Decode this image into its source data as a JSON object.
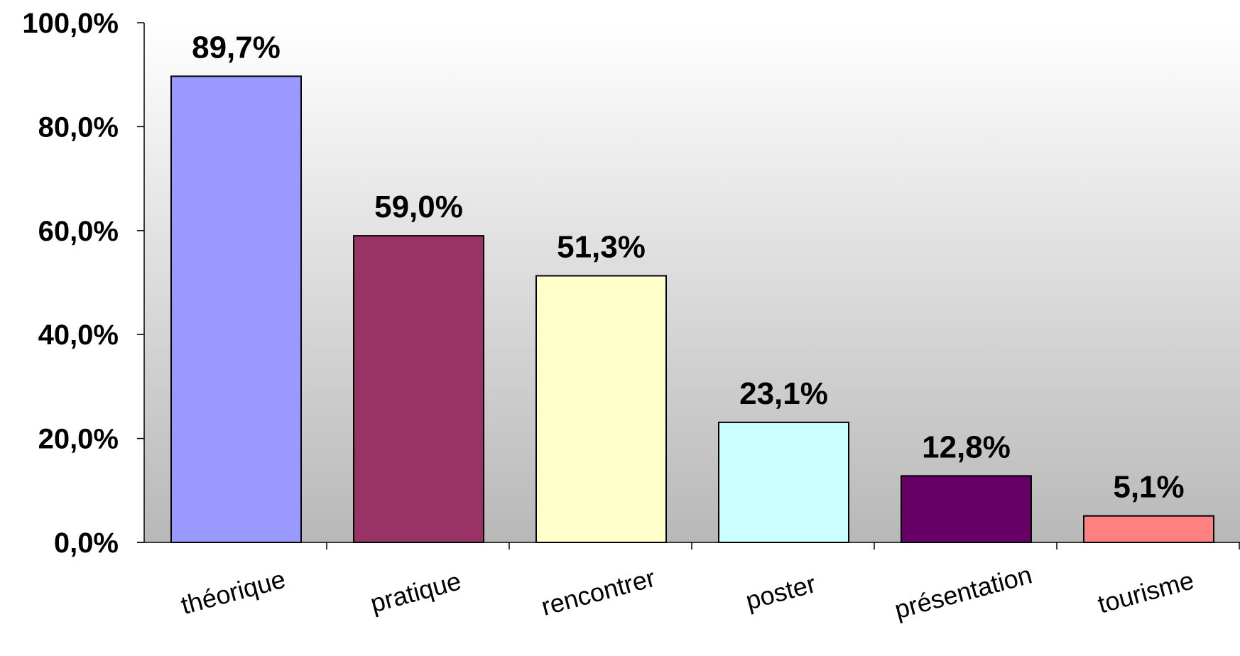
{
  "chart_data": {
    "type": "bar",
    "categories": [
      "théorique",
      "pratique",
      "rencontrer",
      "poster",
      "présentation",
      "tourisme"
    ],
    "values": [
      89.7,
      59.0,
      51.3,
      23.1,
      12.8,
      5.1
    ],
    "value_labels": [
      "89,7%",
      "59,0%",
      "51,3%",
      "23,1%",
      "12,8%",
      "5,1%"
    ],
    "colors": [
      "#9999ff",
      "#993366",
      "#ffffcc",
      "#ccffff",
      "#660066",
      "#ff8080"
    ],
    "title": "",
    "xlabel": "",
    "ylabel": "",
    "ylim": [
      0,
      100
    ],
    "yticks": [
      0,
      20,
      40,
      60,
      80,
      100
    ],
    "ytick_labels": [
      "0,0%",
      "20,0%",
      "40,0%",
      "60,0%",
      "80,0%",
      "100,0%"
    ],
    "grid": false,
    "legend": "none",
    "background": "gradient white to gray"
  }
}
